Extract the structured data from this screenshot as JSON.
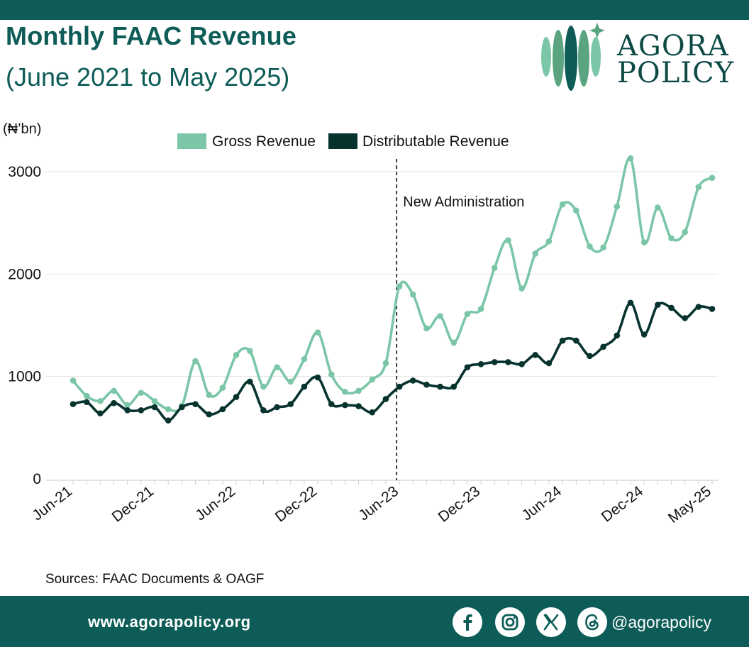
{
  "header": {
    "title": "Monthly FAAC Revenue",
    "subtitle": "(June 2021 to May 2025)"
  },
  "logo": {
    "line1": "AGORA",
    "line2": "POLICY"
  },
  "colors": {
    "brand": "#0d5c57",
    "gross": "#7cc6a8",
    "distributable": "#07332f"
  },
  "chart_data": {
    "type": "line",
    "unit_label": "(₦’bn)",
    "ylim": [
      0,
      3000
    ],
    "yticks": [
      0,
      1000,
      2000,
      3000
    ],
    "xtick_labels": [
      "Jun-21",
      "Dec-21",
      "Jun-22",
      "Dec-22",
      "Jun-23",
      "Dec-23",
      "Jun-24",
      "Dec-24",
      "May-25"
    ],
    "xtick_indices": [
      0,
      6,
      12,
      18,
      24,
      30,
      36,
      42,
      47
    ],
    "annotation": {
      "text": "New Administration",
      "index": 23.8
    },
    "series": [
      {
        "name": "Gross Revenue",
        "color": "#7cc6a8",
        "values": [
          960,
          810,
          760,
          860,
          720,
          840,
          760,
          680,
          710,
          1150,
          820,
          890,
          1210,
          1250,
          900,
          1090,
          950,
          1170,
          1430,
          1020,
          850,
          860,
          970,
          1130,
          1880,
          1800,
          1470,
          1590,
          1330,
          1610,
          1660,
          2060,
          2330,
          1860,
          2200,
          2320,
          2680,
          2620,
          2270,
          2260,
          2660,
          3130,
          2310,
          2650,
          2350,
          2410,
          2850,
          2940
        ]
      },
      {
        "name": "Distributable Revenue",
        "color": "#07332f",
        "values": [
          730,
          750,
          640,
          740,
          670,
          670,
          700,
          570,
          700,
          730,
          630,
          680,
          800,
          950,
          670,
          700,
          730,
          900,
          990,
          730,
          720,
          710,
          650,
          780,
          900,
          960,
          920,
          900,
          900,
          1090,
          1120,
          1140,
          1140,
          1120,
          1210,
          1130,
          1350,
          1350,
          1200,
          1290,
          1400,
          1720,
          1410,
          1700,
          1670,
          1570,
          1680,
          1660
        ]
      }
    ]
  },
  "sources": "Sources: FAAC Documents & OAGF",
  "footer": {
    "website": "www.agorapolicy.org",
    "handle": "@agorapolicy"
  }
}
